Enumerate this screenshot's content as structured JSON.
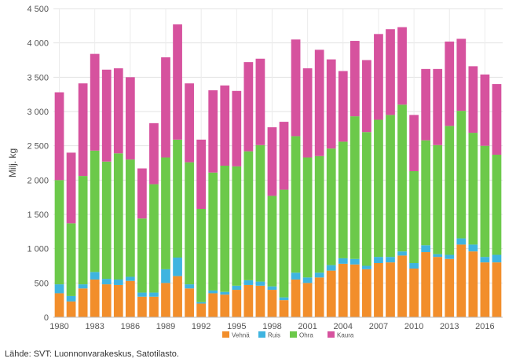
{
  "chart_data": {
    "type": "bar",
    "stacked": true,
    "ylabel": "Milj. kg",
    "ylim": [
      0,
      4500
    ],
    "yticks": [
      0,
      500,
      1000,
      1500,
      2000,
      2500,
      3000,
      3500,
      4000,
      4500
    ],
    "ytick_labels": [
      "0",
      "500",
      "1 000",
      "1 500",
      "2 000",
      "2 500",
      "3 000",
      "3 500",
      "4 000",
      "4 500"
    ],
    "grid": true,
    "legend_position": "bottom",
    "x": [
      1980,
      1981,
      1982,
      1983,
      1984,
      1985,
      1986,
      1987,
      1988,
      1989,
      1990,
      1991,
      1992,
      1993,
      1994,
      1995,
      1996,
      1997,
      1998,
      1999,
      2000,
      2001,
      2002,
      2003,
      2004,
      2005,
      2006,
      2007,
      2008,
      2009,
      2010,
      2011,
      2012,
      2013,
      2014,
      2015,
      2016,
      2017
    ],
    "xtick_labels": [
      "1980",
      "1983",
      "1986",
      "1989",
      "1992",
      "1995",
      "1998",
      "2001",
      "2004",
      "2007",
      "2010",
      "2013",
      "2016"
    ],
    "series": [
      {
        "name": "Vehnä",
        "color": "#f28e2b",
        "values": [
          350,
          230,
          420,
          550,
          480,
          470,
          530,
          300,
          300,
          500,
          600,
          420,
          200,
          350,
          330,
          400,
          470,
          460,
          400,
          250,
          550,
          500,
          580,
          680,
          780,
          770,
          700,
          790,
          800,
          900,
          710,
          950,
          880,
          850,
          1060,
          960,
          800,
          800
        ]
      },
      {
        "name": "Ruis",
        "color": "#3fb4e0",
        "values": [
          130,
          80,
          60,
          110,
          80,
          80,
          60,
          60,
          60,
          200,
          270,
          60,
          20,
          40,
          40,
          60,
          70,
          60,
          50,
          40,
          100,
          80,
          70,
          80,
          80,
          80,
          50,
          90,
          80,
          60,
          80,
          100,
          40,
          60,
          90,
          100,
          80,
          110
        ]
      },
      {
        "name": "Ohra",
        "color": "#6cc94a",
        "values": [
          1520,
          1060,
          1580,
          1770,
          1710,
          1840,
          1710,
          1080,
          1580,
          1630,
          1720,
          1780,
          1360,
          1720,
          1840,
          1740,
          1880,
          1990,
          1320,
          1570,
          1990,
          1750,
          1700,
          1700,
          1700,
          2080,
          1950,
          2000,
          2070,
          2140,
          1340,
          1530,
          1590,
          1880,
          1860,
          1630,
          1620,
          1460
        ]
      },
      {
        "name": "Kaura",
        "color": "#d6529e",
        "values": [
          1280,
          1030,
          1350,
          1410,
          1340,
          1240,
          1200,
          730,
          890,
          1460,
          1680,
          1150,
          1010,
          1200,
          1170,
          1100,
          1300,
          1260,
          1000,
          990,
          1410,
          1300,
          1550,
          1300,
          1030,
          1100,
          1050,
          1250,
          1250,
          1130,
          820,
          1040,
          1110,
          1230,
          1050,
          970,
          1040,
          1030
        ]
      }
    ]
  },
  "source_text": "Lähde: SVT: Luonnonvarakeskus, Satotilasto."
}
